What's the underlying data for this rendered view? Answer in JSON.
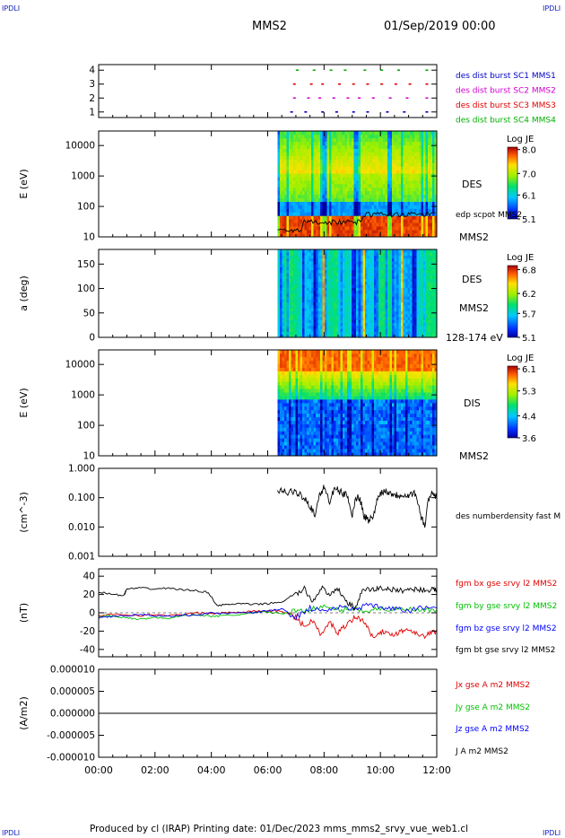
{
  "header": {
    "corner_label": "IPDLI",
    "spacecraft": "MMS2",
    "date": "01/Sep/2019 00:00"
  },
  "footer": {
    "text": "Produced by cl (IRAP)   Printing date: 01/Dec/2023   mms_mms2_srvy_vue_web1.cl"
  },
  "colors": {
    "mms1": "#0000c8",
    "mms2": "#d000d0",
    "mms3": "#e00000",
    "mms4": "#00b000",
    "bx": "#e00000",
    "by": "#00c000",
    "bz": "#0000ff",
    "bt": "#000000"
  },
  "chart_data": [
    {
      "type": "scatter",
      "panel": "burst-availability",
      "yticks": [
        "1",
        "2",
        "3",
        "4"
      ],
      "ylim": [
        0.6,
        4.4
      ],
      "series": [
        {
          "name": "des dist burst SC1 MMS1",
          "y": 1,
          "color": "#0000c8",
          "x": [
            6.8,
            7.3,
            7.9,
            8.4,
            9.0,
            9.5,
            10.2,
            10.8,
            11.6
          ]
        },
        {
          "name": "des dist burst SC2 MMS2",
          "y": 2,
          "color": "#d000d0",
          "x": [
            6.9,
            7.4,
            7.8,
            8.3,
            8.8,
            9.2,
            9.7,
            10.3,
            10.9,
            11.6
          ]
        },
        {
          "name": "des dist burst SC3 MMS3",
          "y": 3,
          "color": "#e00000",
          "x": [
            6.9,
            7.5,
            7.9,
            8.5,
            9.0,
            9.5,
            10.0,
            10.5,
            11.0,
            11.6
          ]
        },
        {
          "name": "des dist burst SC4 MMS4",
          "y": 4,
          "color": "#00b000",
          "x": [
            7.0,
            7.6,
            8.2,
            8.7,
            9.4,
            10.0,
            10.6,
            11.6
          ]
        }
      ]
    },
    {
      "type": "heatmap",
      "panel": "des-energy",
      "ylabel": "E (eV)",
      "yscale": "log",
      "ylim": [
        10,
        30000
      ],
      "yticks": [
        "10",
        "100",
        "1000",
        "10000"
      ],
      "side_labels": [
        "DES",
        "edp scpot MMS2",
        "MMS2"
      ],
      "colorbar": {
        "title": "Log JE",
        "ticks": [
          "8.0",
          "7.0",
          "6.1",
          "5.1"
        ],
        "range": [
          5.1,
          8.1
        ]
      },
      "data_start_hour": 6.35,
      "overlay_line": "edp scpot MMS2"
    },
    {
      "type": "heatmap",
      "panel": "des-pitch-angle",
      "ylabel": "a (deg)",
      "ylim": [
        0,
        180
      ],
      "yticks": [
        "0",
        "50",
        "100",
        "150"
      ],
      "side_labels": [
        "DES",
        "MMS2",
        "128-174 eV"
      ],
      "colorbar": {
        "title": "Log JE",
        "ticks": [
          "6.8",
          "6.2",
          "5.7",
          "5.1"
        ],
        "range": [
          5.1,
          6.9
        ]
      },
      "data_start_hour": 6.35
    },
    {
      "type": "heatmap",
      "panel": "dis-energy",
      "ylabel": "E (eV)",
      "yscale": "log",
      "ylim": [
        10,
        30000
      ],
      "yticks": [
        "10",
        "100",
        "1000",
        "10000"
      ],
      "side_labels": [
        "DIS",
        "MMS2"
      ],
      "colorbar": {
        "title": "Log JE",
        "ticks": [
          "6.1",
          "5.3",
          "4.4",
          "3.6"
        ],
        "range": [
          3.6,
          6.2
        ]
      },
      "data_start_hour": 6.35
    },
    {
      "type": "line",
      "panel": "density",
      "ylabel": "(cm^-3)",
      "yscale": "log",
      "ylim": [
        0.001,
        1.0
      ],
      "yticks": [
        "0.001",
        "0.010",
        "0.100",
        "1.000"
      ],
      "series": [
        {
          "name": "des numberdensity fast M",
          "color": "#000000",
          "x": [
            6.35,
            6.6,
            6.9,
            7.1,
            7.3,
            7.5,
            7.7,
            7.9,
            8.0,
            8.2,
            8.4,
            8.6,
            8.8,
            9.0,
            9.2,
            9.4,
            9.6,
            9.8,
            10.0,
            10.2,
            10.4,
            10.6,
            10.8,
            11.0,
            11.2,
            11.4,
            11.6,
            11.8,
            12.0
          ],
          "y": [
            0.18,
            0.16,
            0.15,
            0.14,
            0.1,
            0.05,
            0.025,
            0.15,
            0.22,
            0.06,
            0.2,
            0.15,
            0.12,
            0.02,
            0.12,
            0.025,
            0.015,
            0.03,
            0.15,
            0.17,
            0.14,
            0.12,
            0.13,
            0.12,
            0.15,
            0.025,
            0.01,
            0.15,
            0.1
          ]
        }
      ]
    },
    {
      "type": "line",
      "panel": "magnetic-field",
      "ylabel": "(nT)",
      "ylim": [
        -48,
        48
      ],
      "yticks": [
        "-40",
        "-20",
        "0",
        "20",
        "40"
      ],
      "series": [
        {
          "name": "fgm bx gse srvy l2 MMS2",
          "color": "#e00000",
          "x": [
            0,
            0.5,
            1.0,
            1.5,
            2.0,
            2.5,
            3.0,
            3.5,
            4.0,
            4.5,
            5.0,
            5.5,
            6.0,
            6.5,
            7.0,
            7.3,
            7.6,
            7.9,
            8.2,
            8.5,
            8.8,
            9.1,
            9.4,
            9.7,
            10.0,
            10.3,
            10.6,
            10.9,
            11.2,
            11.5,
            11.8,
            12.0
          ],
          "y": [
            -3,
            -2,
            -2,
            -3,
            -2,
            -3,
            -2,
            0,
            -1,
            0,
            1,
            2,
            2,
            2,
            -5,
            -15,
            -8,
            -25,
            -10,
            -22,
            -12,
            -5,
            -8,
            -26,
            -20,
            -24,
            -22,
            -18,
            -20,
            -26,
            -22,
            -20
          ]
        },
        {
          "name": "fgm by gse srvy l2 MMS2",
          "color": "#00c000",
          "x": [
            0,
            0.5,
            1.0,
            1.5,
            2.0,
            2.5,
            3.0,
            3.5,
            4.0,
            4.5,
            5.0,
            5.5,
            6.0,
            6.5,
            7.0,
            7.5,
            8.0,
            8.5,
            9.0,
            9.5,
            10.0,
            10.5,
            11.0,
            11.5,
            12.0
          ],
          "y": [
            -4,
            -3,
            -6,
            -7,
            -5,
            -6,
            -3,
            -2,
            -4,
            -3,
            -2,
            0,
            1,
            -1,
            2,
            4,
            6,
            3,
            5,
            2,
            5,
            3,
            4,
            2,
            3
          ]
        },
        {
          "name": "fgm bz gse srvy l2 MMS2",
          "color": "#0000ff",
          "x": [
            0,
            0.5,
            1.0,
            1.5,
            2.0,
            2.5,
            3.0,
            3.5,
            4.0,
            4.5,
            5.0,
            5.5,
            6.0,
            6.5,
            7.0,
            7.5,
            8.0,
            8.5,
            9.0,
            9.5,
            10.0,
            10.5,
            11.0,
            11.5,
            12.0
          ],
          "y": [
            -6,
            -4,
            -3,
            -2,
            -3,
            -4,
            -2,
            -3,
            0,
            -1,
            1,
            0,
            2,
            4,
            -5,
            5,
            2,
            6,
            4,
            8,
            6,
            4,
            2,
            6,
            5
          ]
        },
        {
          "name": "fgm bt gse srvy l2 MMS2",
          "color": "#000000",
          "x": [
            0,
            0.5,
            0.9,
            1.0,
            1.5,
            2.0,
            2.5,
            3.0,
            3.5,
            3.9,
            4.2,
            4.6,
            5.0,
            5.5,
            6.0,
            6.5,
            7.0,
            7.3,
            7.6,
            7.9,
            8.2,
            8.5,
            8.8,
            9.1,
            9.4,
            9.7,
            10.0,
            10.3,
            10.6,
            10.9,
            11.2,
            11.5,
            11.8,
            12.0
          ],
          "y": [
            23,
            20,
            19,
            26,
            27,
            26,
            27,
            25,
            24,
            22,
            8,
            9,
            10,
            9,
            10,
            12,
            20,
            26,
            12,
            28,
            18,
            26,
            12,
            5,
            26,
            25,
            27,
            26,
            24,
            25,
            26,
            25,
            25,
            25
          ]
        }
      ]
    },
    {
      "type": "line",
      "panel": "current-density",
      "ylabel": "(A/m2)",
      "ylim": [
        -0.0001,
        0.0001
      ],
      "yticks": [
        "-0.000010",
        "-0.000005",
        "0.000000",
        "0.000005",
        "0.000010"
      ],
      "series": [
        {
          "name": "Jx gse A m2 MMS2",
          "color": "#e00000",
          "x": [
            0,
            12
          ],
          "y": [
            0,
            0
          ]
        },
        {
          "name": "Jy gse A m2 MMS2",
          "color": "#00c000",
          "x": [
            0,
            12
          ],
          "y": [
            0,
            0
          ]
        },
        {
          "name": "Jz gse A m2 MMS2",
          "color": "#0000ff",
          "x": [
            0,
            12
          ],
          "y": [
            0,
            0
          ]
        },
        {
          "name": "J A m2 MMS2",
          "color": "#000000",
          "x": [
            0,
            12
          ],
          "y": [
            0,
            0
          ]
        }
      ]
    }
  ],
  "time_axis": {
    "xlim": [
      0,
      12
    ],
    "tick_hours": [
      0,
      2,
      4,
      6,
      8,
      10,
      12
    ],
    "tick_labels": [
      "00:00",
      "02:00",
      "04:00",
      "06:00",
      "08:00",
      "10:00",
      "12:00"
    ]
  }
}
